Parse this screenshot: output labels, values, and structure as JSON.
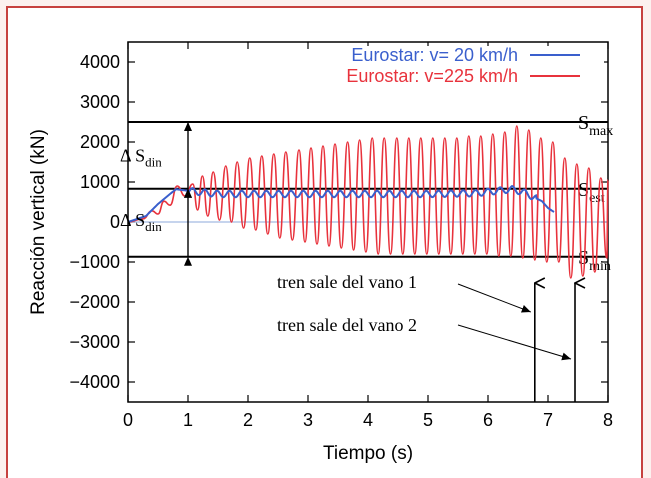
{
  "chart_data": {
    "type": "line",
    "xlabel": "Tiempo (s)",
    "ylabel": "Reacción vertical (kN)",
    "xlim": [
      0,
      8
    ],
    "ylim": [
      -4500,
      4500
    ],
    "xticks": [
      "0",
      "1",
      "2",
      "3",
      "4",
      "5",
      "6",
      "7",
      "8"
    ],
    "yticks": [
      "4000",
      "3000",
      "2000",
      "1000",
      "0",
      "−1000",
      "−2000",
      "−3000",
      "−4000"
    ],
    "legend_position": "top-right",
    "grid": false,
    "series": [
      {
        "name": "Eurostar: v= 20 km/h",
        "color": "#3a5fcd",
        "x": [
          0.0,
          0.3,
          0.5,
          0.7,
          0.8,
          0.9,
          1.0,
          1.5,
          2.0,
          3.0,
          4.0,
          5.0,
          5.8,
          6.4,
          6.6,
          6.9,
          7.0,
          7.1
        ],
        "y": [
          0,
          150,
          450,
          700,
          820,
          800,
          780,
          700,
          700,
          700,
          700,
          700,
          720,
          820,
          740,
          520,
          350,
          250
        ]
      },
      {
        "name": "Eurostar: v=225 km/h",
        "color": "#e8323c",
        "peaks": {
          "t": [
            1.08,
            1.24,
            1.42,
            1.63,
            1.82,
            2.03,
            2.23,
            2.43,
            2.63,
            2.85,
            3.05,
            3.25,
            3.45,
            3.66,
            3.86,
            4.07,
            4.27,
            4.48,
            4.68,
            4.88,
            5.08,
            5.28,
            5.48,
            5.68,
            5.88,
            6.08,
            6.28,
            6.48,
            6.68,
            6.88,
            7.08,
            7.28,
            7.48,
            7.68,
            7.88
          ],
          "max": [
            950,
            1150,
            1250,
            1400,
            1500,
            1600,
            1650,
            1700,
            1750,
            1800,
            1850,
            1900,
            1950,
            2000,
            2050,
            2100,
            2100,
            2100,
            2100,
            2100,
            2100,
            2100,
            2100,
            2150,
            2150,
            2200,
            2250,
            2400,
            2300,
            2100,
            2000,
            1600,
            1450,
            1350,
            1100
          ],
          "min": [
            300,
            150,
            50,
            0,
            -150,
            -200,
            -300,
            -400,
            -450,
            -500,
            -550,
            -600,
            -650,
            -700,
            -750,
            -800,
            -800,
            -800,
            -800,
            -800,
            -800,
            -800,
            -800,
            -800,
            -800,
            -850,
            -850,
            -900,
            -950,
            -1000,
            -1000,
            -1400,
            -1350,
            -1250,
            -900
          ]
        }
      }
    ],
    "reference_lines": [
      {
        "label": "S",
        "sub": "max",
        "y": 2500
      },
      {
        "label": "S",
        "sub": "est",
        "y": 830
      },
      {
        "label": "S",
        "sub": "min",
        "y": -870
      }
    ],
    "annotations": [
      {
        "text": "Δ S",
        "sub": "din",
        "y_from": 830,
        "y_to": 2500,
        "x": 1.0
      },
      {
        "text": "Δ S",
        "sub": "din",
        "y_from": -870,
        "y_to": 830,
        "x": 1.0
      },
      {
        "text": "tren sale del vano 1",
        "x_event": 6.78
      },
      {
        "text": "tren sale del vano 2",
        "x_event": 7.45
      }
    ]
  }
}
